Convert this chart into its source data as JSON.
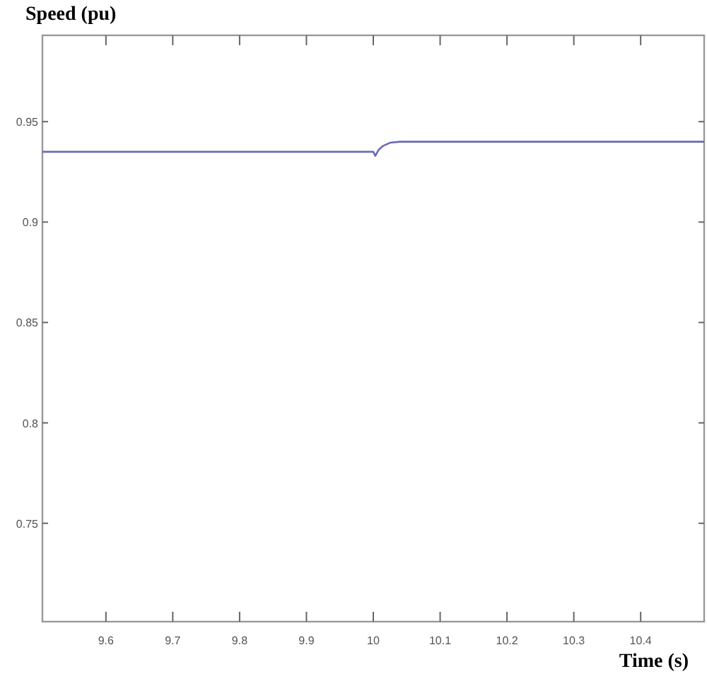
{
  "chart_data": {
    "type": "line",
    "ylabel": "Speed (pu)",
    "xlabel": "Time (s)",
    "x": [
      9.505,
      9.8,
      10.0,
      10.003,
      10.008,
      10.015,
      10.025,
      10.04,
      10.2,
      10.495
    ],
    "series": [
      {
        "color": "#6a6ab4",
        "values": [
          0.935,
          0.935,
          0.935,
          0.933,
          0.936,
          0.938,
          0.9395,
          0.94,
          0.94,
          0.94
        ]
      }
    ],
    "xlim": [
      9.505,
      10.495
    ],
    "ylim": [
      0.701,
      0.993
    ],
    "xticks": [
      9.6,
      9.7,
      9.8,
      9.9,
      10,
      10.1,
      10.2,
      10.3,
      10.4
    ],
    "yticks": [
      0.75,
      0.8,
      0.85,
      0.9,
      0.95
    ],
    "grid": false,
    "marker": "none",
    "line_style": "solid"
  }
}
